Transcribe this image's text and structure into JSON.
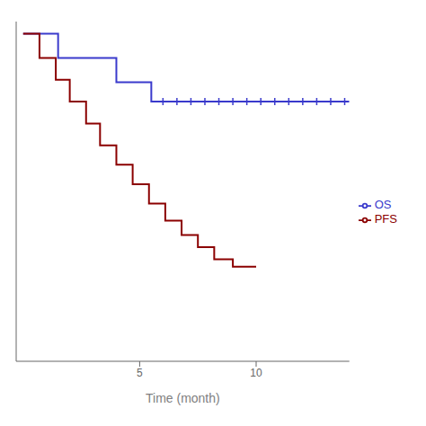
{
  "chart_data": {
    "type": "line",
    "line_style": "step",
    "xlabel": "Time (month)",
    "xlim": [
      -0.3,
      14.0
    ],
    "xticks": [
      5,
      10
    ],
    "ylim": [
      -0.35,
      1.05
    ],
    "tick_labels": "x",
    "legend": "right",
    "series": [
      {
        "name": "OS",
        "color": "#3a3acc",
        "marker": "+",
        "x": [
          0,
          1.5,
          1.5,
          4.0,
          4.0,
          5.5,
          5.5,
          14.0
        ],
        "values": [
          1.0,
          1.0,
          0.9,
          0.9,
          0.8,
          0.8,
          0.72,
          0.72
        ],
        "censor_x": [
          6.0,
          6.6,
          7.2,
          7.8,
          8.4,
          9.0,
          9.6,
          10.2,
          10.8,
          11.4,
          12.0,
          12.6,
          13.2,
          13.8
        ],
        "censor_y": [
          0.72,
          0.72,
          0.72,
          0.72,
          0.72,
          0.72,
          0.72,
          0.72,
          0.72,
          0.72,
          0.72,
          0.72,
          0.72,
          0.72
        ]
      },
      {
        "name": "PFS",
        "color": "#8b0000",
        "x": [
          0,
          0.7,
          0.7,
          1.4,
          1.4,
          2.0,
          2.0,
          2.7,
          2.7,
          3.3,
          3.3,
          4.0,
          4.0,
          4.7,
          4.7,
          5.4,
          5.4,
          6.1,
          6.1,
          6.8,
          6.8,
          7.5,
          7.5,
          8.2,
          8.2,
          9.0,
          9.0,
          9.6,
          9.6,
          10.0
        ],
        "values": [
          1.0,
          1.0,
          0.9,
          0.9,
          0.81,
          0.81,
          0.72,
          0.72,
          0.63,
          0.63,
          0.54,
          0.54,
          0.46,
          0.46,
          0.38,
          0.38,
          0.3,
          0.3,
          0.23,
          0.23,
          0.17,
          0.17,
          0.12,
          0.12,
          0.07,
          0.07,
          0.04,
          0.04,
          0.04,
          0.04
        ]
      }
    ]
  }
}
